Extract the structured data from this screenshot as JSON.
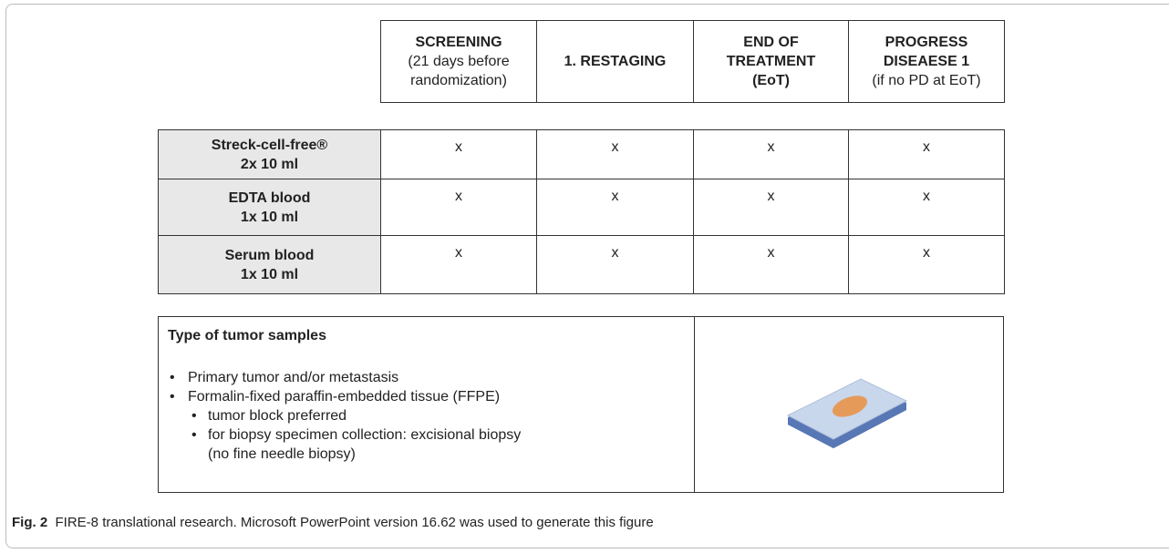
{
  "header": {
    "columns": [
      {
        "title": [
          "SCREENING"
        ],
        "note": [
          "(21 days before",
          "randomization)"
        ]
      },
      {
        "title": [
          "1. RESTAGING"
        ],
        "note": []
      },
      {
        "title": [
          "END OF",
          "TREATMENT",
          "(EoT)"
        ],
        "note": []
      },
      {
        "title": [
          "PROGRESS",
          "DISEAESE 1"
        ],
        "note": [
          "(if no PD at EoT)"
        ]
      }
    ]
  },
  "table": {
    "rows": [
      {
        "label": "Streck-cell-free®",
        "volume": "2x 10 ml",
        "cells": [
          "x",
          "x",
          "x",
          "x"
        ]
      },
      {
        "label": "EDTA blood",
        "volume": "1x 10 ml",
        "cells": [
          "x",
          "x",
          "x",
          "x"
        ]
      },
      {
        "label": "Serum blood",
        "volume": "1x 10 ml",
        "cells": [
          "x",
          "x",
          "x",
          "x"
        ]
      }
    ]
  },
  "tumor": {
    "title": "Type of tumor samples",
    "bullets": [
      "Primary tumor and/or metastasis",
      "Formalin-fixed paraffin-embedded tissue (FFPE)"
    ],
    "sub_bullets": [
      "tumor block preferred",
      "for biopsy specimen collection: excisional biopsy",
      "(no fine needle biopsy)"
    ]
  },
  "caption": {
    "label": "Fig. 2",
    "text": "FIRE-8 translational research. Microsoft PowerPoint version 16.62 was used to generate this figure"
  }
}
